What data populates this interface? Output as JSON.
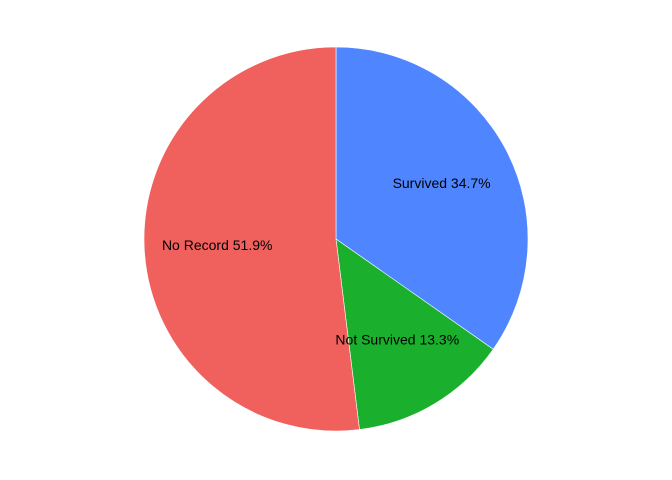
{
  "chart_data": {
    "type": "pie",
    "slices": [
      {
        "label": "Survived",
        "value": 34.7,
        "color": "#4F86FF",
        "display": "Survived 34.7%"
      },
      {
        "label": "Not Survived",
        "value": 13.3,
        "color": "#1AB02E",
        "display": "Not Survived 13.3%"
      },
      {
        "label": "No Record",
        "value": 51.9,
        "color": "#F0605D",
        "display": "No Record 51.9%"
      }
    ],
    "start": "12 o'clock",
    "direction": "clockwise",
    "legend": "none",
    "title": ""
  }
}
